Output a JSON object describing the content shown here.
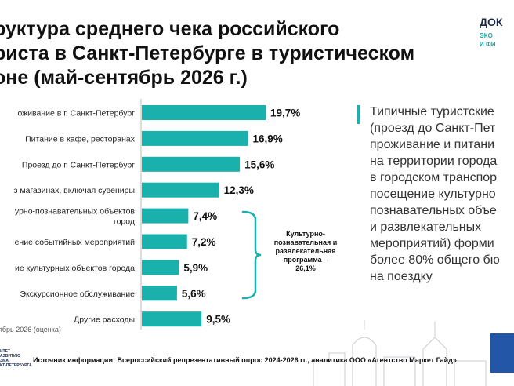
{
  "title": "руктура среднего чека российского\nриста в Санкт-Петербурге в туристическом\nоне (май-сентябрь 2026 г.)",
  "logo": {
    "line1": "ДОК",
    "line2": "ЭКО",
    "line3": "И ФИ"
  },
  "chart_data": {
    "type": "bar",
    "orientation": "horizontal",
    "categories": [
      "оживание в г. Санкт-Петербург",
      "Питание в кафе, ресторанах",
      "Проезд до г. Санкт-Петербург",
      "з магазинах, включая сувениры",
      "урно-познавательных объектов\nгород",
      "ение событийных мероприятий",
      "ие культурных объектов города",
      "Экскурсионное обслуживание",
      "Другие расходы"
    ],
    "values": [
      19.7,
      16.9,
      15.6,
      12.3,
      7.4,
      7.2,
      5.9,
      5.6,
      9.5
    ],
    "value_labels": [
      "19,7%",
      "16,9%",
      "15,6%",
      "12,3%",
      "7,4%",
      "7,2%",
      "5,9%",
      "5,6%",
      "9,5%"
    ],
    "bar_color": "#1ab0ac",
    "xlim": [
      0,
      19.7
    ]
  },
  "bracket_label": "Культурно-\nпознавательная и\nразвлекательная\nпрограмма –\n26,1%",
  "side_text": "Типичные туристские\n(проезд до Санкт-Пет\nпроживание и питани\nна территории города\nв городском транспор\nпосещение культурно\nпознавательных объе\nи развлекательных\nмероприятий) форми\nболее 80% общего бю\nна поездку",
  "note": "ябрь 2026 (оценка)",
  "bottom_logo": "ИТЕТ\nАЗВИТИЮ\nЗМА\nКТ-ПЕТЕРБУРГА",
  "source": "Источник информации: Всероссийский репрезентативный опрос 2024-2026 гг., аналитика ООО «Агентство Маркет Гайд»"
}
